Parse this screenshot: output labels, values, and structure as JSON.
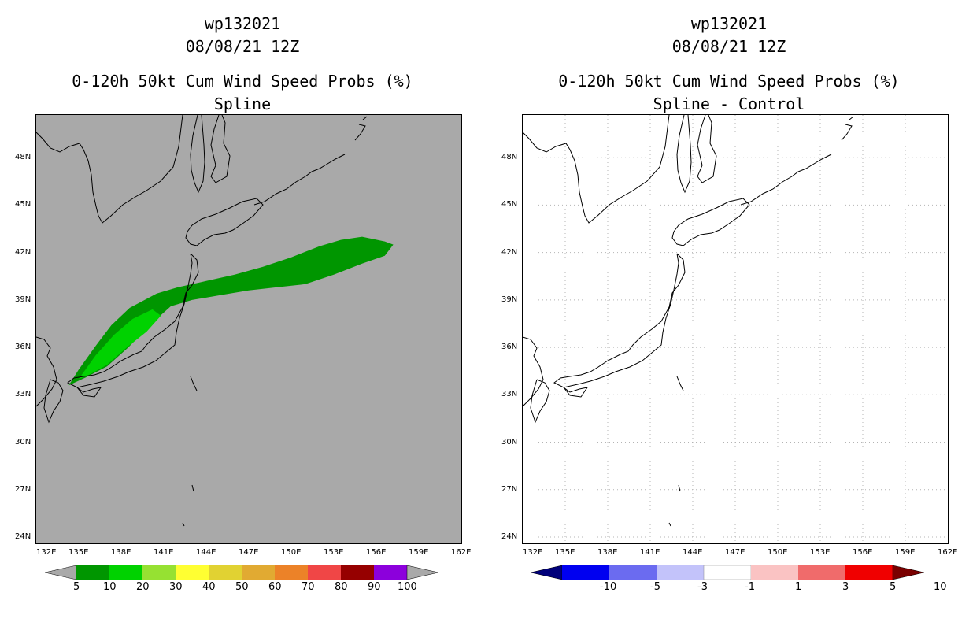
{
  "panels": [
    {
      "id": "left",
      "title_line1": "wp132021",
      "title_line2": "08/08/21 12Z",
      "title_line3": "0-120h 50kt Cum Wind Speed Probs (%)",
      "title_line4": "Spline",
      "background": "#a9a9a9"
    },
    {
      "id": "right",
      "title_line1": "wp132021",
      "title_line2": "08/08/21 12Z",
      "title_line3": "0-120h 50kt Cum Wind Speed Probs (%)",
      "title_line4": "Spline - Control",
      "background": "#ffffff"
    }
  ],
  "lat_labels": [
    "48N",
    "45N",
    "42N",
    "39N",
    "36N",
    "33N",
    "30N",
    "27N",
    "24N"
  ],
  "lat_values": [
    48,
    45,
    42,
    39,
    36,
    33,
    30,
    27,
    24
  ],
  "lon_labels": [
    "132E",
    "135E",
    "138E",
    "141E",
    "144E",
    "147E",
    "150E",
    "153E",
    "156E",
    "159E",
    "162E"
  ],
  "lon_values": [
    132,
    135,
    138,
    141,
    144,
    147,
    150,
    153,
    156,
    159,
    162
  ],
  "map_extent": {
    "lon_min": 132,
    "lon_max": 162,
    "lat_min": 23.6,
    "lat_max": 50.7
  },
  "left_colorbar": {
    "labels": [
      "5",
      "10",
      "20",
      "30",
      "40",
      "50",
      "60",
      "70",
      "80",
      "90",
      "100"
    ],
    "colors": [
      "#a9a9a9",
      "#009600",
      "#00d200",
      "#96e132",
      "#ffff32",
      "#e1d232",
      "#e1aa32",
      "#ec8228",
      "#f04646",
      "#960000",
      "#8c00dc",
      "#a9a9a9"
    ]
  },
  "right_colorbar": {
    "labels": [
      "-10",
      "-5",
      "-3",
      "-1",
      "1",
      "3",
      "5",
      "10"
    ],
    "colors": [
      "#00007a",
      "#0000f0",
      "#6b6bf0",
      "#c3c3fa",
      "#ffffff",
      "#fac3c3",
      "#f06b6b",
      "#f00000",
      "#7a0000"
    ]
  },
  "probability_swath": {
    "outer_color": "#009600",
    "inner_color": "#00d200",
    "outer_lonlat": [
      [
        134.3,
        33.6
      ],
      [
        135.0,
        34.6
      ],
      [
        136.2,
        36.1
      ],
      [
        137.3,
        37.4
      ],
      [
        138.6,
        38.5
      ],
      [
        140.5,
        39.4
      ],
      [
        142.0,
        39.8
      ],
      [
        144.0,
        40.2
      ],
      [
        146.0,
        40.6
      ],
      [
        148.0,
        41.1
      ],
      [
        150.0,
        41.7
      ],
      [
        152.0,
        42.4
      ],
      [
        153.5,
        42.8
      ],
      [
        155.0,
        43.0
      ],
      [
        156.6,
        42.7
      ],
      [
        157.2,
        42.5
      ],
      [
        156.6,
        41.8
      ],
      [
        155.0,
        41.3
      ],
      [
        153.0,
        40.6
      ],
      [
        151.0,
        40.0
      ],
      [
        149.0,
        39.8
      ],
      [
        147.0,
        39.6
      ],
      [
        145.0,
        39.3
      ],
      [
        143.0,
        39.0
      ],
      [
        141.5,
        38.6
      ],
      [
        140.5,
        37.8
      ],
      [
        139.8,
        37.2
      ],
      [
        138.5,
        36.0
      ],
      [
        137.0,
        34.8
      ],
      [
        135.5,
        34.1
      ],
      [
        134.3,
        33.6
      ]
    ],
    "inner_lonlat": [
      [
        135.0,
        34.0
      ],
      [
        136.2,
        35.5
      ],
      [
        137.5,
        36.8
      ],
      [
        138.8,
        37.8
      ],
      [
        140.2,
        38.4
      ],
      [
        140.8,
        38.0
      ],
      [
        139.8,
        37.0
      ],
      [
        138.4,
        36.0
      ],
      [
        137.0,
        34.9
      ],
      [
        135.6,
        34.2
      ],
      [
        135.0,
        34.0
      ]
    ]
  }
}
